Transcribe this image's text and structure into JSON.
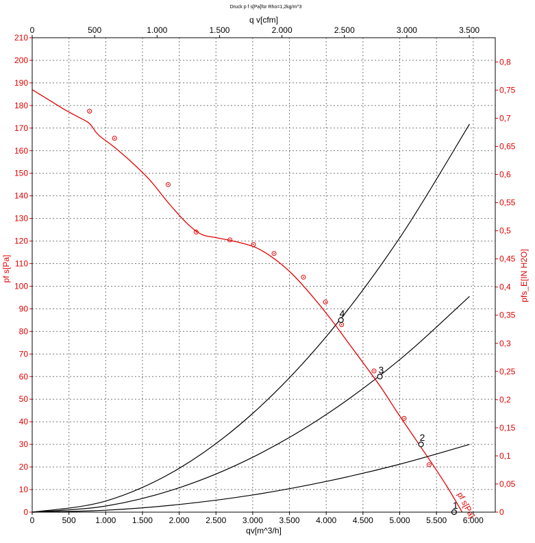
{
  "colors": {
    "accent": "#e00000",
    "ink": "#000000",
    "grid": "#777777"
  },
  "chart_data": {
    "type": "line",
    "title": "Druck p f s[Pa]für Rho=1,2kg/m^3",
    "xlabel": "qv[m^3/h]",
    "x2label": "q v[cfm]",
    "ylabel": "pf s[Pa]",
    "y2label": "pfs_E[IN H2O]",
    "xlim": [
      0,
      6300
    ],
    "ylim": [
      0,
      210
    ],
    "x2lim": [
      0,
      3708
    ],
    "y2lim": [
      0,
      0.8431
    ],
    "grid": true,
    "x_ticks": [
      0,
      500,
      1000,
      1500,
      2000,
      2500,
      3000,
      3500,
      4000,
      4500,
      5000,
      5500,
      6000
    ],
    "x_tick_labels": [
      "0",
      "500",
      "1.000",
      "1.500",
      "2.000",
      "2.500",
      "3.000",
      "3.500",
      "4.000",
      "4.500",
      "5.000",
      "5.500",
      "6.000"
    ],
    "y_ticks": [
      0,
      10,
      20,
      30,
      40,
      50,
      60,
      70,
      80,
      90,
      100,
      110,
      120,
      130,
      140,
      150,
      160,
      170,
      180,
      190,
      200,
      210
    ],
    "y_tick_labels": [
      "0",
      "10",
      "20",
      "30",
      "40",
      "50",
      "60",
      "70",
      "80",
      "90",
      "100",
      "110",
      "120",
      "130",
      "140",
      "150",
      "160",
      "170",
      "180",
      "190",
      "200",
      "210"
    ],
    "x2_ticks": [
      0,
      500,
      1000,
      1500,
      2000,
      2500,
      3000,
      3500
    ],
    "x2_tick_labels": [
      "0",
      "500",
      "1.000",
      "1.500",
      "2.000",
      "2.500",
      "3.000",
      "3.500"
    ],
    "y2_ticks": [
      0,
      0.05,
      0.1,
      0.15,
      0.2,
      0.25,
      0.3,
      0.35,
      0.4,
      0.45,
      0.5,
      0.55,
      0.6,
      0.65,
      0.7,
      0.75,
      0.8
    ],
    "y2_tick_labels": [
      "0",
      "0,05",
      "0,1",
      "0,15",
      "0,2",
      "0,25",
      "0,3",
      "0,35",
      "0,4",
      "0,45",
      "0,5",
      "0,55",
      "0,6",
      "0,65",
      "0,7",
      "0,75",
      "0,8"
    ],
    "fan_curve": {
      "label": "pf s[Pa]",
      "x": [
        0,
        200,
        450,
        650,
        780,
        900,
        1100,
        1350,
        1600,
        1850,
        2100,
        2300,
        2500,
        2800,
        3050,
        3300,
        3550,
        3800,
        4050,
        4300,
        4550,
        4750,
        4950,
        5200,
        5450,
        5650,
        5850
      ],
      "y": [
        187,
        183,
        178,
        174.5,
        172,
        167,
        162,
        155,
        147,
        137,
        128,
        123,
        121.5,
        119.5,
        117,
        112,
        105,
        96,
        86,
        75,
        64,
        55,
        45,
        33,
        21,
        11,
        0
      ],
      "measured_x": [
        780,
        1120,
        1850,
        2230,
        2690,
        3010,
        3290,
        3690,
        3990,
        4210,
        4650,
        5060,
        5400
      ],
      "measured_y": [
        177.5,
        165.5,
        145,
        124,
        120.5,
        118.5,
        114.5,
        104,
        93,
        83,
        62.5,
        41.5,
        21
      ]
    },
    "system_curves": [
      {
        "x": [
          0,
          1000,
          2000,
          3000,
          4000,
          5000,
          5950
        ],
        "y": [
          0,
          0.85,
          3.4,
          7.6,
          13.6,
          21.2,
          30
        ]
      },
      {
        "x": [
          0,
          1000,
          2000,
          3000,
          4000,
          5000,
          5950
        ],
        "y": [
          0,
          2.7,
          10.8,
          24.3,
          43.2,
          67.5,
          95.5
        ]
      },
      {
        "x": [
          0,
          1000,
          2000,
          3000,
          4000,
          5000,
          5950
        ],
        "y": [
          0,
          4.9,
          19.4,
          43.7,
          77.7,
          121.4,
          171.8
        ]
      }
    ],
    "operating_points": [
      {
        "label": "1",
        "x": 5740,
        "y": 0
      },
      {
        "label": "2",
        "x": 5290,
        "y": 30
      },
      {
        "label": "3",
        "x": 4730,
        "y": 60
      },
      {
        "label": "4",
        "x": 4200,
        "y": 85
      }
    ]
  }
}
